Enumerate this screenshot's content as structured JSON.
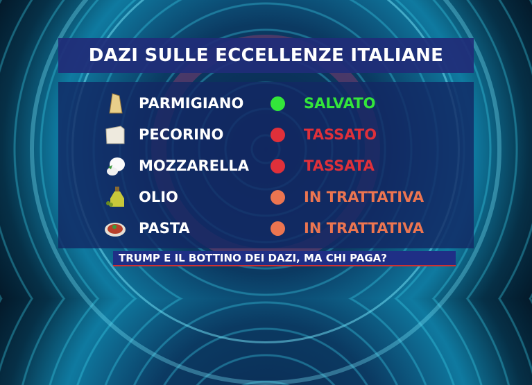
{
  "title": "DAZI SULLE ECCELLENZE ITALIANE",
  "colors": {
    "salvato": "#33e63a",
    "tassato": "#e0303a",
    "trattativa": "#ec7550"
  },
  "items": [
    {
      "name": "PARMIGIANO",
      "status": "SALVATO",
      "color": "#33e63a",
      "icon": "parmesan-icon"
    },
    {
      "name": "PECORINO",
      "status": "TASSATO",
      "color": "#e0303a",
      "icon": "pecorino-icon"
    },
    {
      "name": "MOZZARELLA",
      "status": "TASSATA",
      "color": "#e0303a",
      "icon": "mozzarella-icon"
    },
    {
      "name": "OLIO",
      "status": "IN TRATTATIVA",
      "color": "#ec7550",
      "icon": "olive-oil-icon"
    },
    {
      "name": "PASTA",
      "status": "IN TRATTATIVA",
      "color": "#ec7550",
      "icon": "pasta-icon"
    }
  ],
  "ticker": "TRUMP E IL BOTTINO DEI DAZI, MA CHI PAGA?"
}
